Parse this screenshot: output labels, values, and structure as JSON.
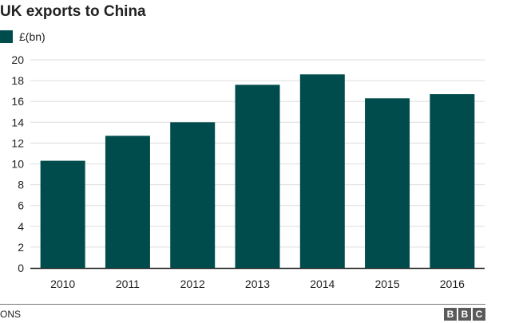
{
  "page": {
    "title": "UK exports to China"
  },
  "legend": {
    "label": "£(bn)"
  },
  "footer": {
    "source": "ONS",
    "logo": [
      "B",
      "B",
      "C"
    ]
  },
  "colors": {
    "bar": "#004c4c",
    "grid": "#dddddd",
    "axis": "#222222"
  },
  "chart_data": {
    "type": "bar",
    "title": "UK exports to China",
    "xlabel": "",
    "ylabel": "",
    "categories": [
      "2010",
      "2011",
      "2012",
      "2013",
      "2014",
      "2015",
      "2016"
    ],
    "series": [
      {
        "name": "£(bn)",
        "values": [
          10.3,
          12.7,
          14.0,
          17.6,
          18.6,
          16.3,
          16.7
        ]
      }
    ],
    "ylim": [
      0,
      20
    ],
    "yticks": [
      0,
      2,
      4,
      6,
      8,
      10,
      12,
      14,
      16,
      18,
      20
    ],
    "grid": true,
    "legend_position": "top-left"
  }
}
